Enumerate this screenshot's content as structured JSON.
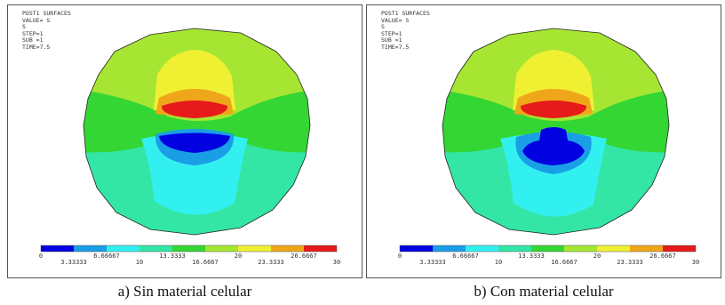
{
  "panels": [
    {
      "header": "POST1 SURFACES",
      "lines": [
        "VALUE= S",
        "S",
        "STEP=1",
        "SUB =1",
        "TIME=7.5"
      ],
      "caption": "a) Sin material celular"
    },
    {
      "header": "POST1 SURFACES",
      "lines": [
        "VALUE= S",
        "S",
        "STEP=1",
        "SUB =1",
        "TIME=7.5"
      ],
      "caption": "b) Con material celular"
    }
  ],
  "legend": {
    "colors": [
      "#0000e0",
      "#1a9ee6",
      "#33f0f0",
      "#33e6a6",
      "#33d633",
      "#a6e633",
      "#f0f033",
      "#f0a61a",
      "#e61a1a"
    ],
    "top_labels": [
      "0",
      "6.66667",
      "13.3333",
      "20",
      "26.6667"
    ],
    "bottom_labels": [
      "3.33333",
      "10",
      "16.6667",
      "23.3333",
      "30"
    ]
  }
}
